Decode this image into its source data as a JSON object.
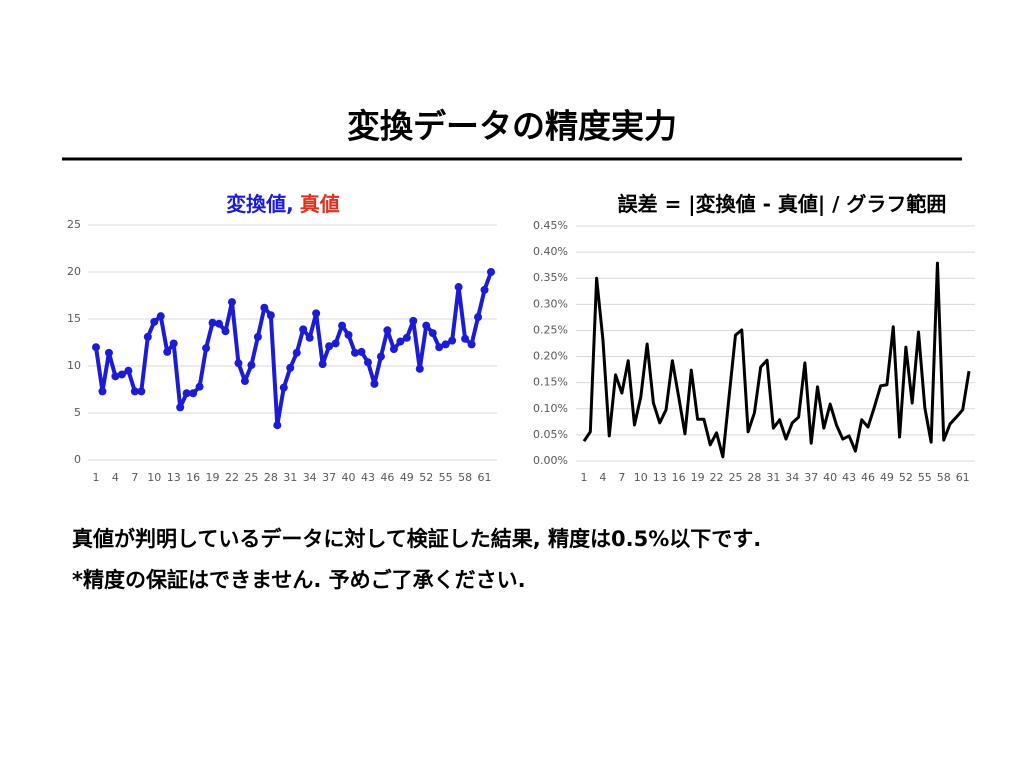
{
  "slide": {
    "title": "変換データの精度実力",
    "body": [
      "真値が判明しているデータに対して検証した結果, 精度は0.5%以下です.",
      "*精度の保証はできません. 予めご了承ください."
    ]
  },
  "chart_data": [
    {
      "type": "line",
      "title": [
        {
          "text": "変換値,",
          "color": "#1c1cd6"
        },
        {
          "text": "真値",
          "color": "#e0301e"
        }
      ],
      "x": [
        1,
        2,
        3,
        4,
        5,
        6,
        7,
        8,
        9,
        10,
        11,
        12,
        13,
        14,
        15,
        16,
        17,
        18,
        19,
        20,
        21,
        22,
        23,
        24,
        25,
        26,
        27,
        28,
        29,
        30,
        31,
        32,
        33,
        34,
        35,
        36,
        37,
        38,
        39,
        40,
        41,
        42,
        43,
        44,
        45,
        46,
        47,
        48,
        49,
        50,
        51,
        52,
        53,
        54,
        55,
        56,
        57,
        58,
        59,
        60,
        61,
        62
      ],
      "xlim": [
        1,
        62
      ],
      "xticks": [
        1,
        4,
        7,
        10,
        13,
        16,
        19,
        22,
        25,
        28,
        31,
        34,
        37,
        40,
        43,
        46,
        49,
        52,
        55,
        58,
        61
      ],
      "ylim": [
        0,
        25
      ],
      "yticks": [
        0,
        5,
        10,
        15,
        20,
        25
      ],
      "grid": true,
      "markers": true,
      "series": [
        {
          "color": "#1c1cd6",
          "values": [
            12,
            7.3,
            11.4,
            8.9,
            9.1,
            9.5,
            7.3,
            7.3,
            13.1,
            14.7,
            15.3,
            11.5,
            12.4,
            5.6,
            7.1,
            7.1,
            7.8,
            11.9,
            14.6,
            14.5,
            13.7,
            16.8,
            10.3,
            8.4,
            10.1,
            13.1,
            16.2,
            15.4,
            3.7,
            7.7,
            9.8,
            11.4,
            13.9,
            13,
            15.6,
            10.2,
            12.1,
            12.4,
            14.3,
            13.3,
            11.4,
            11.5,
            10.4,
            8.1,
            11,
            13.8,
            11.8,
            12.6,
            13,
            14.8,
            9.7,
            14.3,
            13.5,
            12,
            12.3,
            12.7,
            18.4,
            12.9,
            12.3,
            15.2,
            18.1,
            20
          ]
        }
      ]
    },
    {
      "type": "line",
      "title": [
        {
          "text": "誤差 = |変換値 - 真値| / グラフ範囲",
          "color": "#000000"
        }
      ],
      "x": [
        1,
        2,
        3,
        4,
        5,
        6,
        7,
        8,
        9,
        10,
        11,
        12,
        13,
        14,
        15,
        16,
        17,
        18,
        19,
        20,
        21,
        22,
        23,
        24,
        25,
        26,
        27,
        28,
        29,
        30,
        31,
        32,
        33,
        34,
        35,
        36,
        37,
        38,
        39,
        40,
        41,
        42,
        43,
        44,
        45,
        46,
        47,
        48,
        49,
        50,
        51,
        52,
        53,
        54,
        55,
        56,
        57,
        58,
        59,
        60,
        61,
        62
      ],
      "xlim": [
        1,
        62
      ],
      "xticks": [
        1,
        4,
        7,
        10,
        13,
        16,
        19,
        22,
        25,
        28,
        31,
        34,
        37,
        40,
        43,
        46,
        49,
        52,
        55,
        58,
        61
      ],
      "ylim": [
        0,
        0.45
      ],
      "yticks": [
        {
          "value": 0,
          "label": "0.00%"
        },
        {
          "value": 0.05,
          "label": "0.05%"
        },
        {
          "value": 0.1,
          "label": "0.10%"
        },
        {
          "value": 0.15,
          "label": "0.15%"
        },
        {
          "value": 0.2,
          "label": "0.20%"
        },
        {
          "value": 0.25,
          "label": "0.25%"
        },
        {
          "value": 0.3,
          "label": "0.30%"
        },
        {
          "value": 0.35,
          "label": "0.35%"
        },
        {
          "value": 0.4,
          "label": "0.40%"
        },
        {
          "value": 0.45,
          "label": "0.45%"
        }
      ],
      "grid": true,
      "markers": false,
      "series": [
        {
          "color": "#000000",
          "values": [
            0.038,
            0.056,
            0.35,
            0.232,
            0.048,
            0.165,
            0.13,
            0.192,
            0.069,
            0.123,
            0.224,
            0.111,
            0.073,
            0.098,
            0.192,
            0.123,
            0.052,
            0.174,
            0.08,
            0.08,
            0.031,
            0.054,
            0.008,
            0.125,
            0.241,
            0.251,
            0.056,
            0.092,
            0.18,
            0.193,
            0.063,
            0.079,
            0.042,
            0.073,
            0.084,
            0.188,
            0.034,
            0.142,
            0.063,
            0.109,
            0.069,
            0.042,
            0.048,
            0.019,
            0.079,
            0.065,
            0.103,
            0.144,
            0.146,
            0.257,
            0.046,
            0.218,
            0.111,
            0.247,
            0.102,
            0.036,
            0.379,
            0.04,
            0.071,
            0.084,
            0.098,
            0.172
          ]
        }
      ]
    }
  ]
}
